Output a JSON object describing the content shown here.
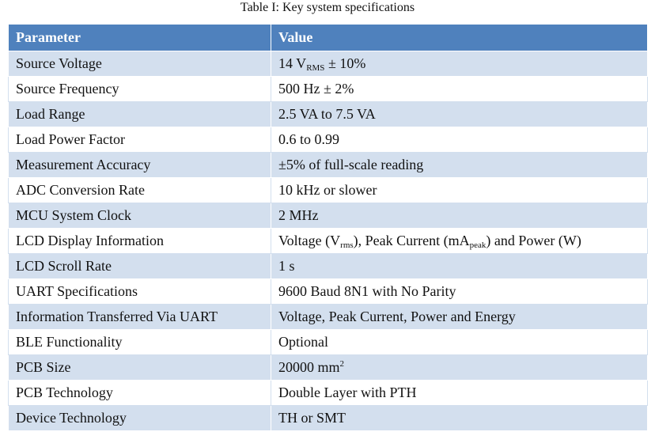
{
  "caption": "Table I:  Key system specifications",
  "table": {
    "headers": {
      "parameter": "Parameter",
      "value": "Value"
    },
    "rows": [
      {
        "parameter": "Source Voltage",
        "value": [
          "14 V",
          "RMS",
          " ± 10%"
        ],
        "markup": "sub"
      },
      {
        "parameter": "Source Frequency",
        "value": "500 Hz ± 2%"
      },
      {
        "parameter": "Load Range",
        "value": "2.5 VA to 7.5 VA"
      },
      {
        "parameter": "Load Power Factor",
        "value": "0.6 to 0.99"
      },
      {
        "parameter": "Measurement Accuracy",
        "value": "±5% of full-scale reading"
      },
      {
        "parameter": "ADC Conversion Rate",
        "value": "10 kHz or slower"
      },
      {
        "parameter": "MCU System Clock",
        "value": "2 MHz"
      },
      {
        "parameter": "LCD Display Information",
        "value": [
          "Voltage (V",
          "rms",
          "), Peak Current (mA",
          "peak",
          ") and Power (W)"
        ],
        "markup": "sub"
      },
      {
        "parameter": "LCD Scroll Rate",
        "value": "1 s"
      },
      {
        "parameter": "UART Specifications",
        "value": "9600 Baud 8N1 with No Parity"
      },
      {
        "parameter": "Information Transferred Via UART",
        "value": "Voltage, Peak Current, Power and Energy"
      },
      {
        "parameter": "BLE Functionality",
        "value": "Optional"
      },
      {
        "parameter": "PCB Size",
        "value": [
          "20000 mm",
          "2"
        ],
        "markup": "sup"
      },
      {
        "parameter": "PCB Technology",
        "value": "Double Layer with PTH"
      },
      {
        "parameter": "Device Technology",
        "value": "TH or SMT"
      }
    ]
  }
}
